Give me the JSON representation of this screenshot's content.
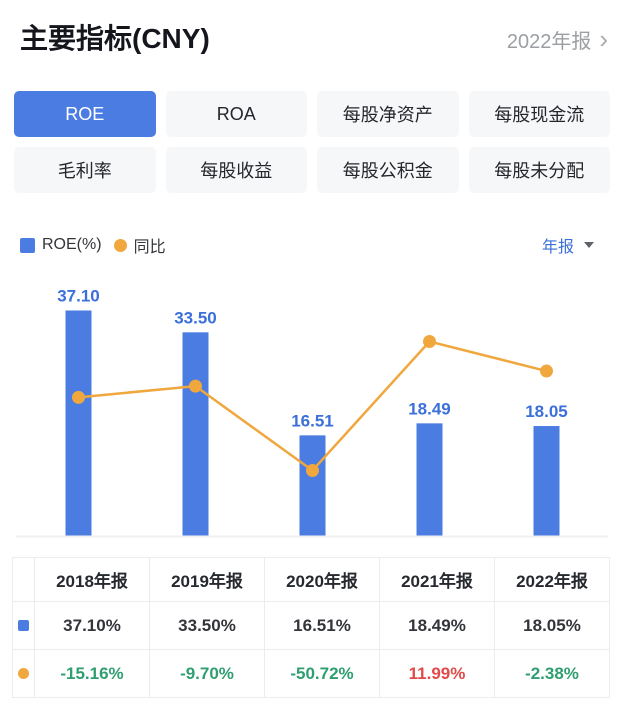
{
  "header": {
    "title": "主要指标(CNY)",
    "period": "2022年报",
    "chevron": "›"
  },
  "tabs": {
    "items": [
      {
        "key": "roe",
        "label": "ROE",
        "active": true
      },
      {
        "key": "roa",
        "label": "ROA",
        "active": false
      },
      {
        "key": "net-assets-per-share",
        "label": "每股净资产",
        "active": false
      },
      {
        "key": "cash-flow-per-share",
        "label": "每股现金流",
        "active": false
      },
      {
        "key": "gross-margin",
        "label": "毛利率",
        "active": false
      },
      {
        "key": "eps",
        "label": "每股收益",
        "active": false
      },
      {
        "key": "capital-reserve-per-share",
        "label": "每股公积金",
        "active": false
      },
      {
        "key": "undistributed-per-share",
        "label": "每股未分配",
        "active": false
      }
    ]
  },
  "legend": {
    "bar_label": "ROE(%)",
    "line_label": "同比",
    "dropdown_label": "年报"
  },
  "chart_data": {
    "type": "bar",
    "categories": [
      "2018年报",
      "2019年报",
      "2020年报",
      "2021年报",
      "2022年报"
    ],
    "series": [
      {
        "name": "ROE(%)",
        "type": "bar",
        "values": [
          37.1,
          33.5,
          16.51,
          18.49,
          18.05
        ],
        "color": "#4a7ce2",
        "label_color": "#3b6fd9"
      },
      {
        "name": "同比",
        "type": "line",
        "values": [
          -15.16,
          -9.7,
          -50.72,
          11.99,
          -2.38
        ],
        "color": "#f0a73e"
      }
    ],
    "title": "",
    "xlabel": "",
    "ylabel": "",
    "ylim_bar": [
      0,
      40
    ],
    "ylim_line": [
      -55,
      15
    ],
    "grid": false,
    "value_labels": "bar",
    "legend_position": "top-left"
  },
  "table": {
    "columns": [
      "2018年报",
      "2019年报",
      "2020年报",
      "2021年报",
      "2022年报"
    ],
    "rows": [
      {
        "marker": "bar-series-icon",
        "colored": false,
        "cells": [
          "37.10%",
          "33.50%",
          "16.51%",
          "18.49%",
          "18.05%"
        ]
      },
      {
        "marker": "line-series-icon",
        "colored": true,
        "cells": [
          "-15.16%",
          "-9.70%",
          "-50.72%",
          "11.99%",
          "-2.38%"
        ]
      }
    ]
  },
  "colors": {
    "accent_blue": "#4a7ce2",
    "label_blue": "#3b6fd9",
    "line_orange": "#f0a73e",
    "positive_red": "#e24a4a",
    "negative_green": "#2f9e70",
    "muted_gray": "#9b9ea3",
    "axis_gray": "#f1f1f2"
  }
}
